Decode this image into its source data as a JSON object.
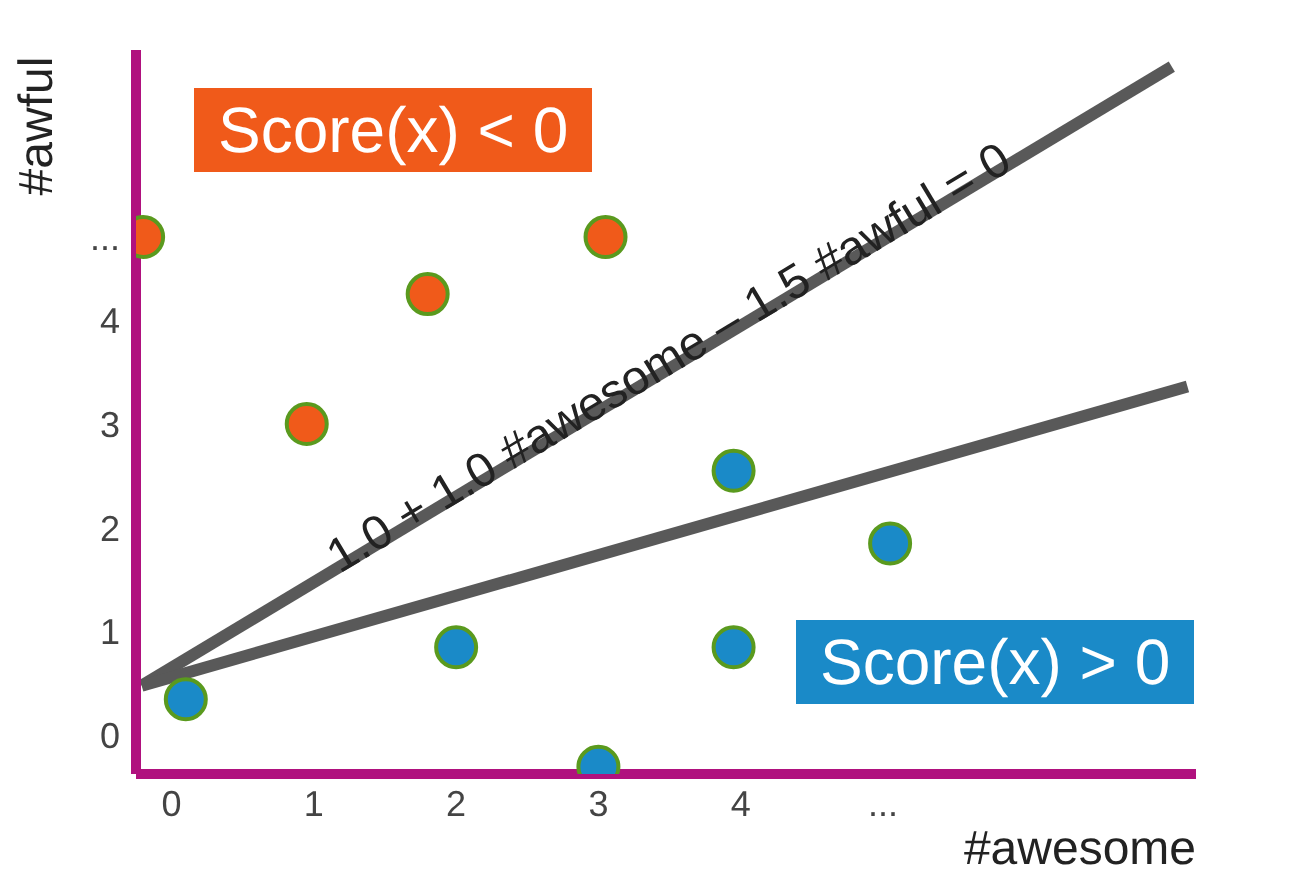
{
  "chart_data": {
    "type": "scatter",
    "xlabel": "#awesome",
    "ylabel": "#awful",
    "xlim": [
      -0.25,
      7.2
    ],
    "ylim": [
      -0.37,
      6.6
    ],
    "xticks": [
      0,
      1,
      2,
      3,
      4,
      {
        "value": 5,
        "label": "..."
      }
    ],
    "yticks": [
      0,
      1,
      2,
      3,
      4,
      {
        "value": 4.8,
        "label": "..."
      }
    ],
    "grid": false,
    "legend": false,
    "marker": "circle",
    "series": [
      {
        "color": "#f05a1a",
        "x": [
          -0.2,
          0.95,
          1.8,
          3.05
        ],
        "values": [
          4.8,
          3.0,
          4.25,
          4.8
        ]
      },
      {
        "color": "#1a8ac8",
        "x": [
          0.1,
          2.0,
          3.0,
          3.95,
          3.95,
          5.05
        ],
        "values": [
          0.35,
          0.85,
          -0.3,
          2.55,
          0.85,
          1.85
        ]
      },
      {
        "type": "line",
        "marker": "none",
        "color": "#595959",
        "x": [
          -0.21,
          7.03
        ],
        "values": [
          0.48,
          6.44
        ]
      },
      {
        "type": "line",
        "marker": "none",
        "color": "#595959",
        "x": [
          -0.21,
          7.14
        ],
        "values": [
          0.48,
          3.36
        ]
      }
    ],
    "annotations": [
      "1.0 + 1.0 #awesome – 1.5 #awful = 0",
      "Score(x) < 0",
      "Score(x) > 0"
    ]
  }
}
